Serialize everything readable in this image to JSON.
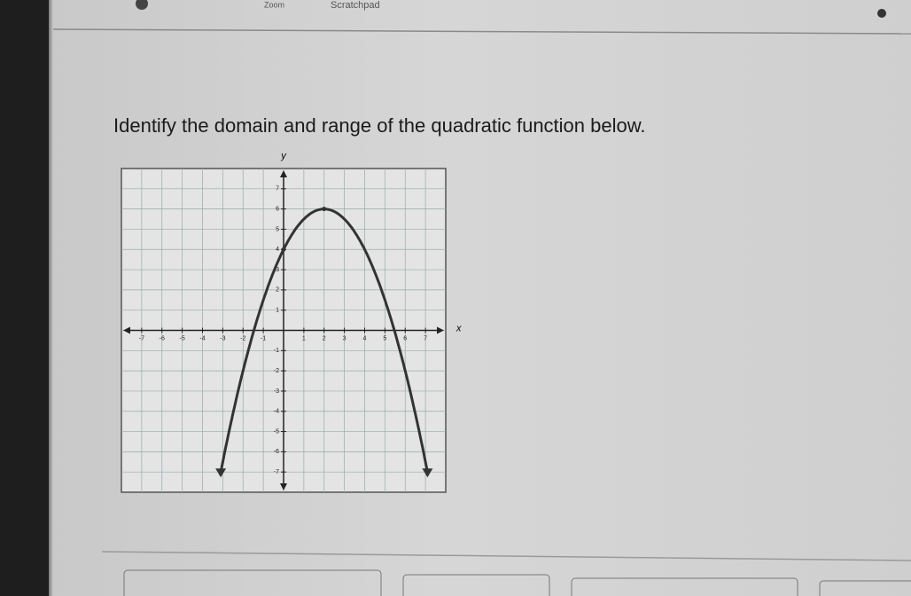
{
  "toolbar": {
    "zoom": "Zoom",
    "scratchpad": "Scratchpad"
  },
  "question": "Identify the domain and range of the quadratic function below.",
  "graph": {
    "x_label": "x",
    "y_label": "y",
    "xlim": [
      -8,
      8
    ],
    "ylim": [
      -8,
      8
    ],
    "xticks": [
      -7,
      -6,
      -5,
      -4,
      -3,
      -2,
      -1,
      1,
      2,
      3,
      4,
      5,
      6,
      7
    ],
    "yticks": [
      -7,
      -6,
      -5,
      -4,
      -3,
      -2,
      -1,
      1,
      2,
      3,
      4,
      5,
      6,
      7
    ],
    "vertex": {
      "x": 2,
      "y": 6
    },
    "y_intercept": 4,
    "end_y": -7
  }
}
